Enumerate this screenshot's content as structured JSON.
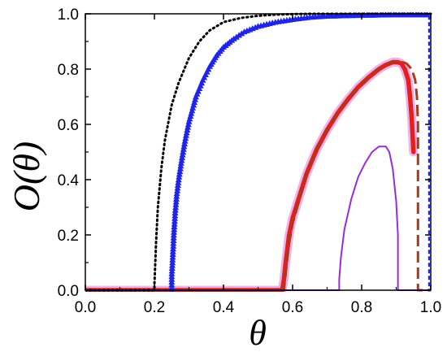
{
  "chart_data": {
    "type": "line",
    "xlabel": "θ",
    "ylabel": "O(θ)",
    "xlim": [
      0.0,
      1.0
    ],
    "ylim": [
      0.0,
      1.0
    ],
    "xticks": [
      "0.0",
      "0.2",
      "0.4",
      "0.6",
      "0.8",
      "1.0"
    ],
    "yticks": [
      "0.0",
      "0.2",
      "0.4",
      "0.6",
      "0.8",
      "1.0"
    ],
    "grid": false,
    "legend": "none",
    "series": [
      {
        "style": "dotted",
        "color": "#000000",
        "x": [
          0.0,
          0.2,
          0.2,
          0.205,
          0.21,
          0.22,
          0.23,
          0.25,
          0.27,
          0.3,
          0.33,
          0.36,
          0.4,
          0.45,
          0.5,
          0.55,
          0.6,
          0.65,
          1.0
        ],
        "y": [
          0.0,
          0.0,
          0.02,
          0.18,
          0.3,
          0.44,
          0.54,
          0.67,
          0.75,
          0.84,
          0.9,
          0.94,
          0.97,
          0.985,
          0.993,
          0.997,
          0.999,
          1.0,
          1.0
        ]
      },
      {
        "style": "triangle-markers",
        "color": "#1f24e6",
        "x": [
          0.0,
          0.25,
          0.25,
          0.253,
          0.256,
          0.26,
          0.265,
          0.27,
          0.28,
          0.29,
          0.3,
          0.32,
          0.34,
          0.36,
          0.38,
          0.4,
          0.43,
          0.46,
          0.5,
          0.55,
          0.6,
          0.65,
          0.7,
          0.8,
          0.9,
          0.99,
          0.995,
          0.995,
          1.0
        ],
        "y": [
          0.0,
          0.0,
          0.05,
          0.12,
          0.2,
          0.28,
          0.35,
          0.4,
          0.48,
          0.55,
          0.61,
          0.7,
          0.76,
          0.81,
          0.85,
          0.88,
          0.91,
          0.935,
          0.955,
          0.97,
          0.98,
          0.988,
          0.992,
          0.995,
          0.997,
          0.997,
          0.997,
          0.0,
          0.0
        ]
      },
      {
        "style": "solid",
        "color": "#9b2bd8",
        "x": [
          0.0,
          0.735,
          0.735,
          0.74,
          0.75,
          0.77,
          0.79,
          0.81,
          0.83,
          0.85,
          0.87,
          0.88,
          0.89,
          0.9,
          0.905,
          0.905,
          1.0
        ],
        "y": [
          0.0,
          0.0,
          0.04,
          0.12,
          0.22,
          0.33,
          0.41,
          0.46,
          0.5,
          0.52,
          0.52,
          0.5,
          0.44,
          0.32,
          0.2,
          0.0,
          0.0
        ]
      },
      {
        "style": "thick-solid",
        "color": "#e3201b",
        "x": [
          0.0,
          0.57,
          0.575,
          0.58,
          0.585,
          0.59,
          0.6,
          0.62,
          0.64,
          0.67,
          0.7,
          0.73,
          0.76,
          0.79,
          0.82,
          0.85,
          0.87,
          0.89,
          0.905,
          0.915,
          0.925,
          0.935,
          0.94,
          0.945,
          0.95
        ],
        "y": [
          0.0,
          0.0,
          0.04,
          0.1,
          0.15,
          0.2,
          0.26,
          0.34,
          0.42,
          0.51,
          0.58,
          0.64,
          0.69,
          0.735,
          0.77,
          0.8,
          0.815,
          0.825,
          0.825,
          0.82,
          0.8,
          0.76,
          0.7,
          0.62,
          0.5
        ]
      },
      {
        "style": "dashed",
        "color": "#a83a1e",
        "x": [
          0.0,
          0.575,
          0.58,
          0.585,
          0.59,
          0.6,
          0.62,
          0.64,
          0.67,
          0.7,
          0.73,
          0.76,
          0.79,
          0.82,
          0.85,
          0.87,
          0.89,
          0.91,
          0.93,
          0.945,
          0.955,
          0.96,
          0.963,
          0.963,
          1.0
        ],
        "y": [
          0.0,
          0.0,
          0.06,
          0.12,
          0.17,
          0.24,
          0.33,
          0.42,
          0.51,
          0.58,
          0.64,
          0.69,
          0.735,
          0.77,
          0.8,
          0.815,
          0.825,
          0.828,
          0.82,
          0.8,
          0.76,
          0.7,
          0.6,
          0.0,
          0.0
        ]
      }
    ]
  }
}
